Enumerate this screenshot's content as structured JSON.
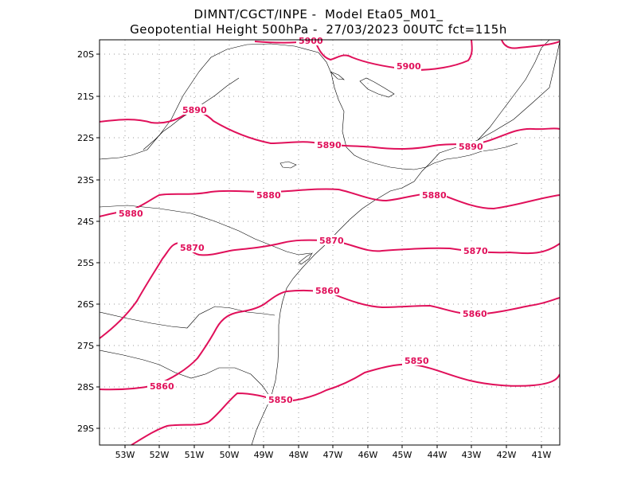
{
  "header": {
    "line1": "DIMNT/CGCT/INPE -  Model Eta05_M01_",
    "line2": "Geopotential Height 500hPa -  27/03/2023 00UTC fct=115h"
  },
  "axes": {
    "lon_labels": [
      "53W",
      "52W",
      "51W",
      "50W",
      "49W",
      "48W",
      "47W",
      "46W",
      "45W",
      "44W",
      "43W",
      "42W",
      "41W"
    ],
    "lat_labels": [
      "20S",
      "21S",
      "22S",
      "23S",
      "24S",
      "25S",
      "26S",
      "27S",
      "28S",
      "29S"
    ]
  },
  "colors": {
    "contour": "#e0105a",
    "border": "#000000",
    "grid": "#9a9a9a"
  },
  "contours": [
    {
      "level": "5900",
      "labels": [
        "5900",
        "5900"
      ]
    },
    {
      "level": "5890",
      "labels": [
        "5890",
        "5890",
        "5890"
      ]
    },
    {
      "level": "5880",
      "labels": [
        "5880",
        "5880",
        "5880"
      ]
    },
    {
      "level": "5870",
      "labels": [
        "5870",
        "5870",
        "5870"
      ]
    },
    {
      "level": "5860",
      "labels": [
        "5860",
        "5860",
        "5860"
      ]
    },
    {
      "level": "5850",
      "labels": [
        "5850",
        "5850"
      ]
    }
  ],
  "chart_data": {
    "type": "map",
    "title": "Geopotential Height 500hPa",
    "model": "Eta05_M01_",
    "init": "27/03/2023 00UTC",
    "forecast_hour": "115h",
    "x_range_deg": [
      -53.6,
      -40.5
    ],
    "y_range_deg": [
      -29.4,
      -19.7
    ],
    "contour_levels": [
      5900,
      5890,
      5880,
      5870,
      5860,
      5850
    ]
  }
}
